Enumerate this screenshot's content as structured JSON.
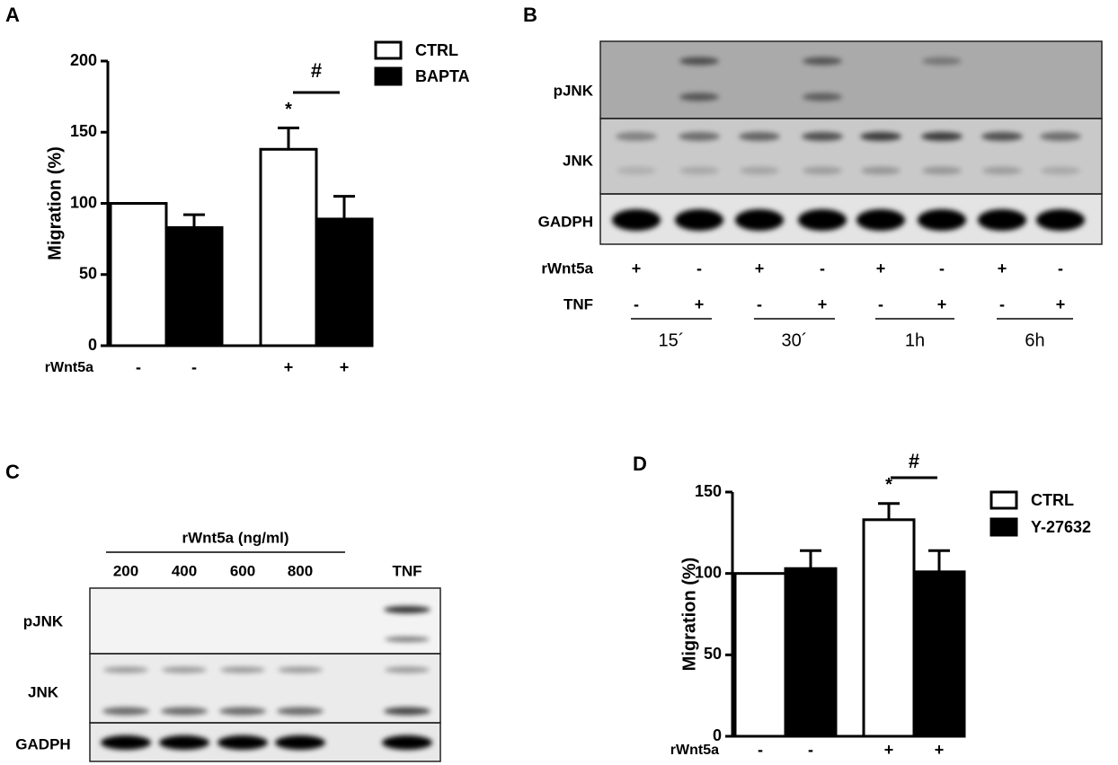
{
  "panel_labels": [
    "A",
    "B",
    "C",
    "D"
  ],
  "chart_data": [
    {
      "type": "bar",
      "ylabel": "Migration (%)",
      "xlabel": "rWnt5a",
      "bar_labels": [
        [
          "-",
          "-"
        ],
        [
          "+",
          "+"
        ]
      ],
      "series": [
        {
          "name": "CTRL",
          "color": "#ffffff",
          "values": [
            100,
            138
          ],
          "errors": [
            null,
            15
          ]
        },
        {
          "name": "BAPTA",
          "color": "#000000",
          "values": [
            83,
            89
          ],
          "errors": [
            9,
            16
          ]
        }
      ],
      "ylim": [
        0,
        200
      ],
      "yticks": [
        0,
        50,
        100,
        150,
        200
      ],
      "annotations": {
        "star": "*",
        "hash": "#"
      },
      "legend": "upper right"
    },
    {
      "type": "bar",
      "ylabel": "Migration (%)",
      "xlabel": "rWnt5a",
      "bar_labels": [
        [
          "-",
          "-"
        ],
        [
          "+",
          "+"
        ]
      ],
      "series": [
        {
          "name": "CTRL",
          "color": "#ffffff",
          "values": [
            100,
            133
          ],
          "errors": [
            null,
            10
          ]
        },
        {
          "name": "Y-27632",
          "color": "#000000",
          "values": [
            103,
            101
          ],
          "errors": [
            11,
            13
          ]
        }
      ],
      "ylim": [
        0,
        150
      ],
      "yticks": [
        0,
        50,
        100,
        150
      ],
      "annotations": {
        "star": "*",
        "hash": "#"
      },
      "legend": "upper right"
    }
  ],
  "blot_b": {
    "rows": [
      "pJNK",
      "JNK",
      "GADPH"
    ],
    "rwnt5a_label": "rWnt5a",
    "rwnt5a": [
      "+",
      "-",
      "+",
      "-",
      "+",
      "-",
      "+",
      "-"
    ],
    "tnf_label": "TNF",
    "tnf": [
      "-",
      "+",
      "-",
      "+",
      "-",
      "+",
      "-",
      "+"
    ],
    "times": [
      "15´",
      "30´",
      "1h",
      "6h"
    ]
  },
  "blot_c": {
    "header": "rWnt5a (ng/ml)",
    "lanes": [
      "200",
      "400",
      "600",
      "800",
      "TNF"
    ],
    "rows": [
      "pJNK",
      "JNK",
      "GADPH"
    ]
  }
}
